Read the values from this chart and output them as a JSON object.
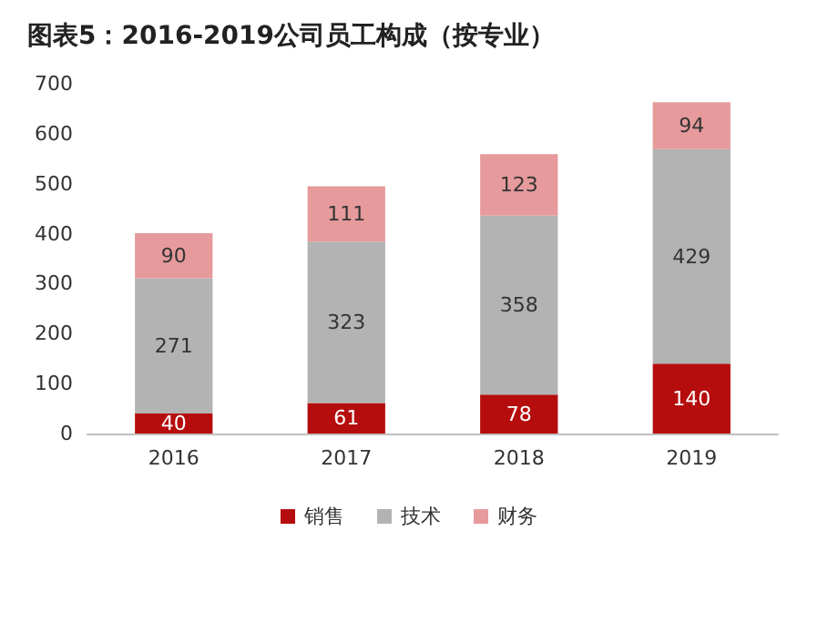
{
  "chart_data": {
    "type": "bar",
    "title": "图表5：2016-2019公司员工构成（按专业）",
    "categories": [
      "2016",
      "2017",
      "2018",
      "2019"
    ],
    "stacked": true,
    "series": [
      {
        "name": "销售",
        "color": "#b50d0d",
        "values": [
          40,
          61,
          78,
          140
        ]
      },
      {
        "name": "技术",
        "color": "#b3b3b3",
        "values": [
          271,
          323,
          358,
          429
        ]
      },
      {
        "name": "财务",
        "color": "#e69a9c",
        "values": [
          90,
          111,
          123,
          94
        ]
      }
    ],
    "ylim": [
      0,
      700
    ],
    "yticks": [
      0,
      100,
      200,
      300,
      400,
      500,
      600,
      700
    ],
    "data_labels": true,
    "legend": "bottom",
    "grid": false
  }
}
